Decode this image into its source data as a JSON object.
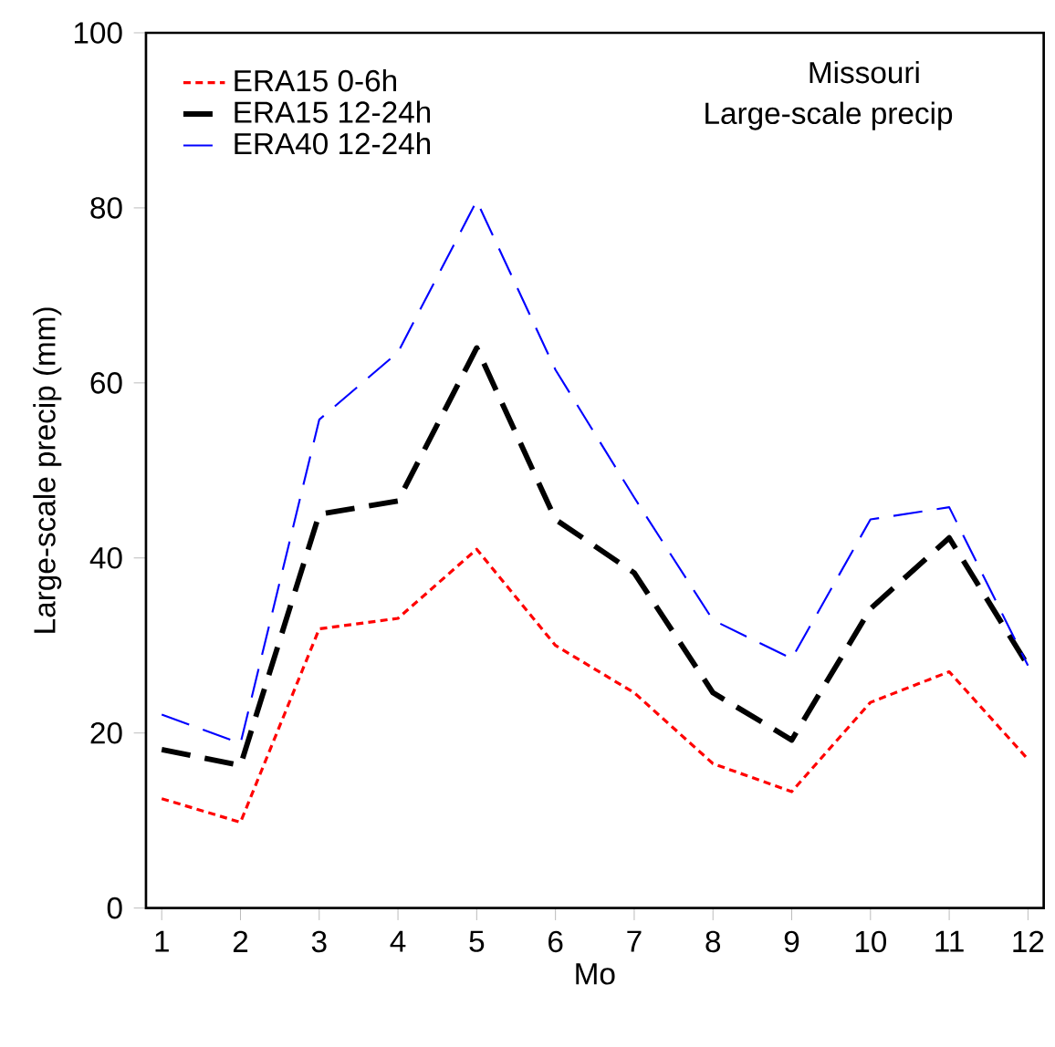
{
  "chart_data": {
    "type": "line",
    "xlabel": "Mo",
    "ylabel": "Large-scale precip (mm)",
    "x": [
      1,
      2,
      3,
      4,
      5,
      6,
      7,
      8,
      9,
      10,
      11,
      12
    ],
    "series": [
      {
        "name": "ERA15 0-6h",
        "color": "#ff0000",
        "line_style": "dotted",
        "values": [
          12.5,
          9.8,
          31.9,
          33.1,
          41,
          30,
          24.6,
          16.5,
          13.3,
          23.5,
          27,
          17
        ]
      },
      {
        "name": "ERA15 12-24h",
        "color": "#000000",
        "line_style": "dashed",
        "values": [
          18.1,
          16.3,
          45,
          46.5,
          64,
          44.4,
          38.3,
          24.6,
          19.2,
          34.2,
          42.3,
          27.7
        ]
      },
      {
        "name": "ERA40 12-24h",
        "color": "#0000ff",
        "line_style": "dashed",
        "values": [
          22.1,
          18.8,
          55.8,
          63.5,
          80.8,
          61.5,
          46.9,
          32.9,
          28.5,
          44.4,
          45.8,
          27.7
        ]
      }
    ],
    "xlim": [
      0.8,
      12.2
    ],
    "xticks": [
      1,
      2,
      3,
      4,
      5,
      6,
      7,
      8,
      9,
      10,
      11,
      12
    ],
    "ylim": [
      0,
      100
    ],
    "yticks": [
      0,
      20,
      40,
      60,
      80,
      100
    ],
    "grid": false,
    "legend": "top left",
    "marker": "none",
    "annotations": [
      "Missouri",
      "Large-scale precip"
    ]
  }
}
